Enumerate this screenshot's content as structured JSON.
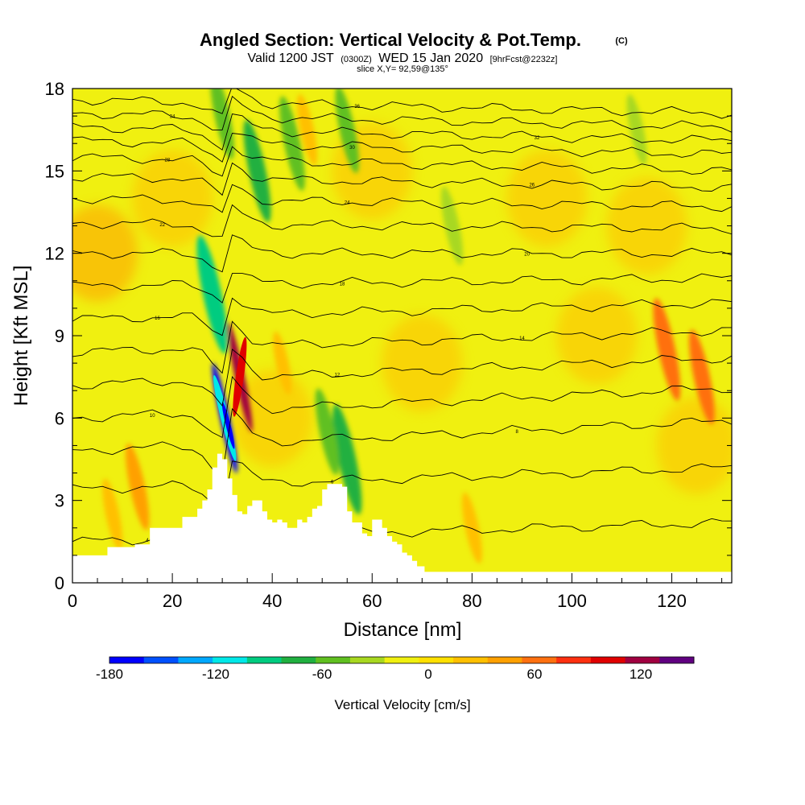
{
  "chart_data": {
    "type": "heatmap",
    "title": "Angled Section: Vertical Velocity & Pot.Temp.",
    "title_unit": "(C)",
    "subtitle_valid": "Valid 1200 JST",
    "subtitle_z": "(0300Z)",
    "subtitle_date": "WED 15 Jan 2020",
    "subtitle_fcst": "[9hrFcst@2232z]",
    "slice_label": "slice X,Y= 92,59@135°",
    "xlabel": "Distance [nm]",
    "ylabel": "Height [Kft MSL]",
    "xlim": [
      0,
      132
    ],
    "ylim": [
      0,
      18
    ],
    "x_ticks": [
      "0",
      "20",
      "40",
      "60",
      "80",
      "100",
      "120"
    ],
    "y_ticks": [
      "0",
      "3",
      "6",
      "9",
      "12",
      "15",
      "18"
    ],
    "colorbar": {
      "label": "Vertical Velocity [cm/s]",
      "range": [
        -180,
        150
      ],
      "tick_labels": [
        "-180",
        "-120",
        "-60",
        "0",
        "60",
        "120"
      ],
      "colors": [
        "#0000ff",
        "#0050ff",
        "#00a8ff",
        "#00e8e8",
        "#00cc80",
        "#20b040",
        "#60c020",
        "#a8d820",
        "#f0f010",
        "#ffe000",
        "#ffc000",
        "#ffa000",
        "#ff7010",
        "#ff3010",
        "#e00000",
        "#a00040",
        "#600080"
      ]
    },
    "terrain_profile": {
      "x": [
        0,
        6,
        7,
        12,
        12.5,
        15,
        15.5,
        19,
        22,
        25,
        26,
        27,
        28,
        29,
        30,
        31,
        32,
        33,
        34,
        35,
        36,
        37,
        38,
        39,
        40,
        41,
        42,
        43,
        44,
        45,
        46,
        47,
        48,
        49,
        50,
        51,
        52,
        53,
        54,
        55,
        56,
        57,
        58,
        59,
        60,
        61,
        62,
        63,
        64,
        65,
        66,
        67,
        68,
        69,
        70,
        70.5,
        72,
        132
      ],
      "height_kft": [
        1.0,
        1.0,
        1.3,
        1.3,
        1.4,
        1.4,
        2.0,
        2.0,
        2.4,
        2.7,
        3.0,
        3.4,
        4.2,
        4.7,
        4.5,
        3.8,
        3.2,
        2.6,
        2.5,
        2.8,
        3.0,
        3.0,
        2.6,
        2.3,
        2.2,
        2.3,
        2.2,
        2.0,
        2.0,
        2.3,
        2.2,
        2.4,
        2.7,
        2.8,
        3.4,
        3.6,
        3.6,
        3.6,
        3.5,
        2.6,
        2.2,
        2.2,
        1.8,
        1.7,
        2.3,
        2.3,
        2.0,
        1.7,
        1.5,
        1.4,
        1.1,
        1.0,
        0.8,
        0.6,
        0.6,
        0.4,
        0.4,
        0.4
      ]
    },
    "velocity_features": [
      {
        "x": 30.5,
        "height_kft": 6.0,
        "value": -180,
        "desc": "downdraft core"
      },
      {
        "x": 33.5,
        "height_kft": 7.5,
        "value": 120,
        "desc": "updraft core"
      },
      {
        "x": 28,
        "height_kft": 10.5,
        "value": -90
      },
      {
        "x": 55,
        "height_kft": 4.5,
        "value": -80
      },
      {
        "x": 51,
        "height_kft": 5.5,
        "value": -50
      },
      {
        "x": 37,
        "height_kft": 15.0,
        "value": -70
      },
      {
        "x": 44,
        "height_kft": 16.0,
        "value": -60
      },
      {
        "x": 55,
        "height_kft": 16.5,
        "value": -50
      },
      {
        "x": 30,
        "height_kft": 17.0,
        "value": -50
      },
      {
        "x": 76,
        "height_kft": 13.0,
        "value": -40
      },
      {
        "x": 113,
        "height_kft": 16.5,
        "value": -30
      },
      {
        "x": 119,
        "height_kft": 8.5,
        "value": 70
      },
      {
        "x": 126,
        "height_kft": 7.5,
        "value": 60
      },
      {
        "x": 13,
        "height_kft": 3.5,
        "value": 50
      },
      {
        "x": 8,
        "height_kft": 2.5,
        "value": 30
      },
      {
        "x": 47,
        "height_kft": 16.5,
        "value": 30
      },
      {
        "x": 42,
        "height_kft": 8.0,
        "value": 20
      },
      {
        "x": 80,
        "height_kft": 2.0,
        "value": 30
      }
    ],
    "isentropes_kft": [
      {
        "label": "4",
        "left": 1.5,
        "right": 2.2
      },
      {
        "label": "6",
        "left": 3.4,
        "right": 4.2
      },
      {
        "label": "8",
        "left": 4.8,
        "right": 5.9
      },
      {
        "label": "10",
        "left": 6.0,
        "right": 7.1
      },
      {
        "label": "12",
        "left": 7.2,
        "right": 8.2
      },
      {
        "label": "14",
        "left": 8.4,
        "right": 9.2
      },
      {
        "label": "16",
        "left": 9.6,
        "right": 10.2
      },
      {
        "label": "18",
        "left": 10.8,
        "right": 11.1
      },
      {
        "label": "20",
        "left": 12.0,
        "right": 12.0
      },
      {
        "label": "22",
        "left": 13.1,
        "right": 12.9
      },
      {
        "label": "24",
        "left": 14.0,
        "right": 13.7
      },
      {
        "label": "26",
        "left": 14.8,
        "right": 14.4
      },
      {
        "label": "28",
        "left": 15.5,
        "right": 15.0
      },
      {
        "label": "30",
        "left": 16.1,
        "right": 15.6
      },
      {
        "label": "32",
        "left": 16.6,
        "right": 16.1
      },
      {
        "label": "34",
        "left": 17.1,
        "right": 16.6
      },
      {
        "label": "36",
        "left": 17.6,
        "right": 17.1
      }
    ],
    "grid": false
  }
}
